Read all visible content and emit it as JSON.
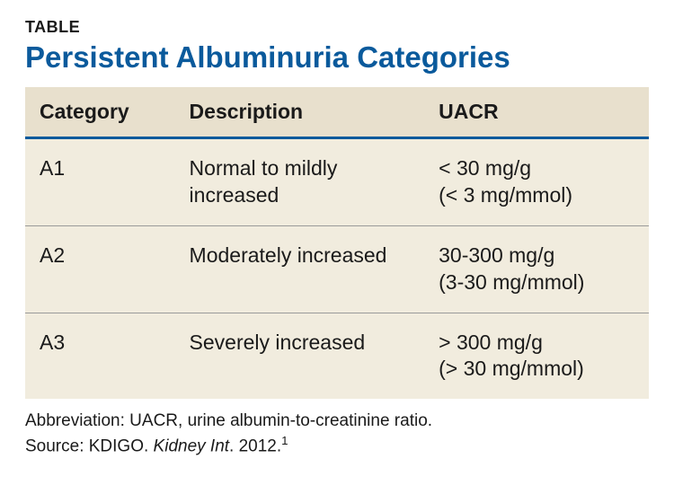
{
  "label": "TABLE",
  "title": "Persistent Albuminuria Categories",
  "title_color": "#0a5a9c",
  "table": {
    "header_bg": "#e8e0cd",
    "body_bg": "#f1ecde",
    "header_border_color": "#0a5a9c",
    "row_border_color": "#9a9a9a",
    "columns": [
      "Category",
      "Description",
      "UACR"
    ],
    "rows": [
      {
        "category": "A1",
        "description": "Normal to mildly increased",
        "uacr_line1": "< 30 mg/g",
        "uacr_line2": "(< 3 mg/mmol)"
      },
      {
        "category": "A2",
        "description": "Moderately increased",
        "uacr_line1": "30-300 mg/g",
        "uacr_line2": "(3-30 mg/mmol)"
      },
      {
        "category": "A3",
        "description": "Severely increased",
        "uacr_line1": "> 300 mg/g",
        "uacr_line2": "(> 30 mg/mmol)"
      }
    ]
  },
  "footnote_abbrev": "Abbreviation: UACR, urine albumin-to-creatinine ratio.",
  "footnote_source_prefix": "Source: KDIGO. ",
  "footnote_source_ital": "Kidney Int",
  "footnote_source_suffix": ". 2012.",
  "footnote_super": "1"
}
